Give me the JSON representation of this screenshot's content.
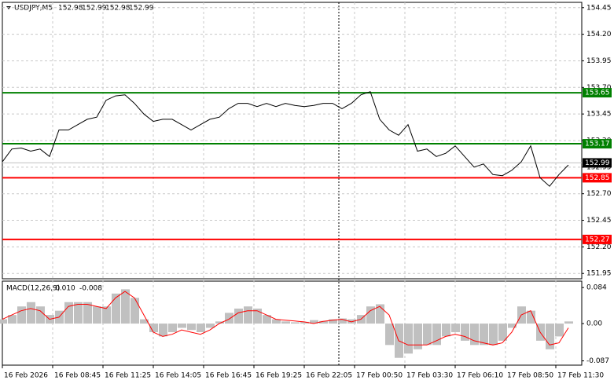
{
  "header": {
    "symbol": "USDJPY,M5",
    "ohlc": [
      152.98,
      152.99,
      152.98,
      152.99
    ]
  },
  "chart_data": [
    {
      "type": "line",
      "color": "#000000",
      "grid": true,
      "ylim": [
        151.9,
        154.5
      ],
      "yticks": [
        154.45,
        {
          "value": 154.2,
          "label": "154.20"
        },
        153.95,
        {
          "value": 153.7,
          "label": "153.70"
        },
        153.45,
        {
          "value": 153.2,
          "label": "153.20"
        },
        152.95,
        {
          "value": 152.7,
          "label": "152.70"
        },
        152.45,
        {
          "value": 152.2,
          "label": "152.20"
        },
        151.95
      ],
      "xticks": [
        "16 Feb 2026",
        "16 Feb 08:45",
        "16 Feb 11:25",
        "16 Feb 14:05",
        "16 Feb 16:45",
        "16 Feb 19:25",
        "16 Feb 22:05",
        "17 Feb 00:50",
        "17 Feb 03:30",
        "17 Feb 06:10",
        "17 Feb 08:50",
        "17 Feb 11:30"
      ],
      "values": [
        153.0,
        153.12,
        153.13,
        153.1,
        153.12,
        153.05,
        153.3,
        153.3,
        153.35,
        153.4,
        153.42,
        153.58,
        153.62,
        153.63,
        153.55,
        153.45,
        153.38,
        153.4,
        153.4,
        153.35,
        153.3,
        153.35,
        153.4,
        153.42,
        153.5,
        153.55,
        153.55,
        153.52,
        153.55,
        153.52,
        153.55,
        153.53,
        153.52,
        153.53,
        153.55,
        153.55,
        153.5,
        153.55,
        153.63,
        153.66,
        153.4,
        153.3,
        153.25,
        153.35,
        153.1,
        153.12,
        153.05,
        153.08,
        153.15,
        153.05,
        152.95,
        152.98,
        152.88,
        152.87,
        152.92,
        153.0,
        153.15,
        152.85,
        152.77,
        152.88,
        152.97
      ],
      "levels": [
        {
          "value": 153.65,
          "color": "#008000"
        },
        {
          "value": 153.17,
          "color": "#008000"
        },
        {
          "value": 152.85,
          "color": "#ff0000"
        },
        {
          "value": 152.27,
          "color": "#ff0000"
        }
      ],
      "last": 152.99
    },
    {
      "type": "macd",
      "title": "MACD(12,26,9)",
      "readout": [
        {
          "value": 0.01,
          "label": "0.010"
        },
        -0.008
      ],
      "ylim": [
        -0.097,
        0.099
      ],
      "yticks": [
        0.084,
        {
          "value": 0,
          "label": "0.00"
        },
        -0.087
      ],
      "histogram_color": "#c0c0c0",
      "signal_color": "#ff0000",
      "histogram": [
        0.01,
        0.02,
        0.04,
        0.05,
        0.04,
        0.02,
        0.03,
        0.05,
        0.05,
        0.05,
        0.04,
        0.04,
        0.07,
        0.08,
        0.06,
        0.01,
        -0.02,
        -0.03,
        -0.02,
        -0.01,
        -0.015,
        -0.02,
        -0.01,
        0.005,
        0.025,
        0.035,
        0.04,
        0.035,
        0.02,
        0.01,
        0.005,
        0.003,
        0.004,
        0.008,
        0.006,
        0.01,
        0.012,
        0.01,
        0.02,
        0.04,
        0.045,
        -0.05,
        -0.08,
        -0.07,
        -0.06,
        -0.05,
        -0.05,
        -0.03,
        -0.02,
        -0.04,
        -0.05,
        -0.05,
        -0.05,
        -0.04,
        -0.01,
        0.04,
        0.03,
        -0.04,
        -0.06,
        -0.03,
        0.005
      ],
      "signal": [
        0.01,
        0.02,
        0.03,
        0.035,
        0.03,
        0.01,
        0.015,
        0.04,
        0.045,
        0.045,
        0.04,
        0.035,
        0.06,
        0.075,
        0.06,
        0.02,
        -0.02,
        -0.03,
        -0.025,
        -0.015,
        -0.02,
        -0.025,
        -0.015,
        0,
        0.01,
        0.025,
        0.03,
        0.03,
        0.02,
        0.01,
        0.008,
        0.006,
        0.004,
        0,
        0.005,
        0.008,
        0.01,
        0.004,
        0.01,
        0.03,
        0.04,
        0.02,
        -0.04,
        -0.05,
        -0.05,
        -0.05,
        -0.04,
        -0.03,
        -0.025,
        -0.03,
        -0.04,
        -0.045,
        -0.05,
        -0.045,
        -0.02,
        0.02,
        0.03,
        -0.02,
        -0.05,
        -0.045,
        -0.01
      ]
    }
  ]
}
